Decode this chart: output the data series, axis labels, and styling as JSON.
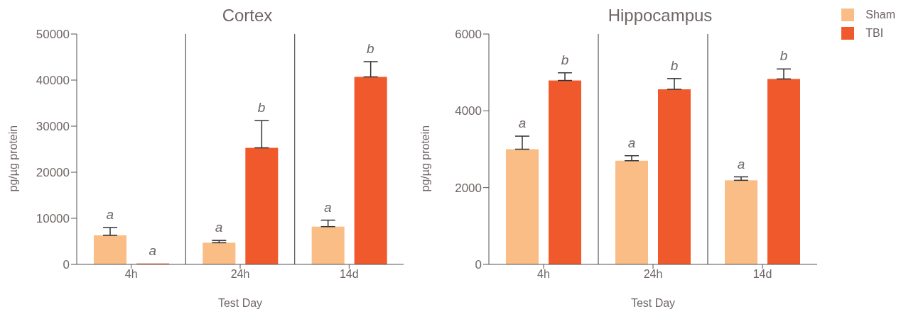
{
  "chart_data": [
    {
      "type": "bar",
      "title": "Cortex",
      "xlabel": "Test Day",
      "ylabel": "pg/µg protein",
      "categories": [
        "4h",
        "24h",
        "14d"
      ],
      "ylim": [
        0,
        50000
      ],
      "yticks": [
        0,
        10000,
        20000,
        30000,
        40000,
        50000
      ],
      "grid": "x",
      "legend": false,
      "series": [
        {
          "color": "#f9bd85",
          "values": [
            6300,
            4700,
            8200
          ],
          "errors": [
            [
              6300,
              8000
            ],
            [
              4700,
              5200
            ],
            [
              8200,
              9600
            ]
          ],
          "value_labels": [
            "a",
            "a",
            "a"
          ]
        },
        {
          "color": "#f0592b",
          "values": [
            200,
            25300,
            40700
          ],
          "errors": [
            null,
            [
              25300,
              31200
            ],
            [
              40700,
              44000
            ]
          ],
          "value_labels": [
            "a",
            "b",
            "b"
          ]
        }
      ]
    },
    {
      "type": "bar",
      "title": "Hippocampus",
      "xlabel": "Test Day",
      "ylabel": "pg/µg protein",
      "categories": [
        "4h",
        "24h",
        "14d"
      ],
      "ylim": [
        0,
        6000
      ],
      "yticks": [
        0,
        2000,
        4000,
        6000
      ],
      "grid": "x",
      "legend": "top right",
      "series": [
        {
          "name": "Sham",
          "color": "#f9bd85",
          "values": [
            3000,
            2700,
            2190
          ],
          "errors": [
            [
              3000,
              3340
            ],
            [
              2700,
              2830
            ],
            [
              2190,
              2280
            ]
          ],
          "value_labels": [
            "a",
            "a",
            "a"
          ]
        },
        {
          "name": "TBI",
          "color": "#f0592b",
          "values": [
            4790,
            4560,
            4830
          ],
          "errors": [
            [
              4790,
              4990
            ],
            [
              4560,
              4840
            ],
            [
              4830,
              5090
            ]
          ],
          "value_labels": [
            "b",
            "b",
            "b"
          ]
        }
      ]
    }
  ]
}
